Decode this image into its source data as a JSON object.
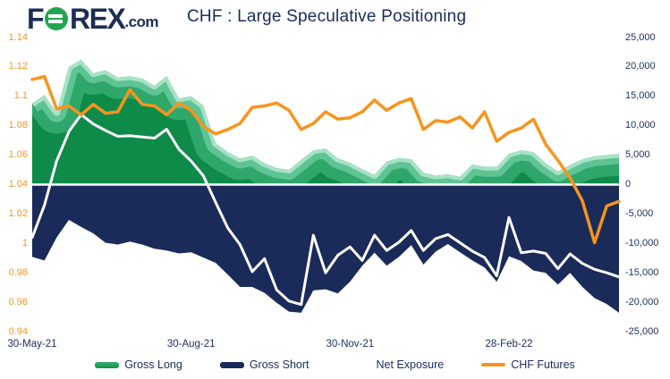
{
  "header": {
    "logo": {
      "prefix": "F",
      "suffix": "REX",
      "tld": ".com",
      "o_icon": "green-globe-circle"
    },
    "title": "CHF : Large Speculative Positioning"
  },
  "chart_data": {
    "type": "combo-area-line",
    "title": "CHF : Large Speculative Positioning",
    "grid": false,
    "legend_position": "bottom",
    "x_count": 49,
    "x_frequency": "weekly",
    "x_ticks": [
      {
        "index": 0,
        "label": "30-May-21"
      },
      {
        "index": 13,
        "label": "30-Aug-21"
      },
      {
        "index": 26,
        "label": "30-Nov-21"
      },
      {
        "index": 39,
        "label": "28-Feb-22"
      }
    ],
    "left_axis": {
      "min": 0.94,
      "max": 1.14,
      "color": "#f7941d",
      "tick_labels": [
        "1.14",
        "1.12",
        "1.1",
        "1.08",
        "1.06",
        "1.04",
        "1.02",
        "1",
        "0.98",
        "0.96",
        "0.94"
      ]
    },
    "right_axis": {
      "min": -25000,
      "max": 25000,
      "color": "#1a2c5e",
      "tick_labels": [
        "25,000",
        "20,000",
        "15,000",
        "10,000",
        "5,000",
        "0",
        "-5,000",
        "-10,000",
        "-15,000",
        "-20,000",
        "-25,000"
      ]
    },
    "series": [
      {
        "name": "Gross Long",
        "type": "area",
        "axis": "right",
        "color": "#0e8a49",
        "edge_shades": [
          "#2fa76b",
          "#5fc494",
          "#a8e2c6"
        ],
        "values": [
          13800,
          15200,
          12300,
          20000,
          21200,
          18900,
          19400,
          18200,
          18400,
          18000,
          16800,
          18400,
          14600,
          15000,
          13400,
          7000,
          5500,
          4400,
          4900,
          3600,
          2800,
          2500,
          4200,
          5800,
          6100,
          4400,
          3700,
          2600,
          1600,
          3900,
          4500,
          4300,
          2000,
          1500,
          1700,
          1300,
          3400,
          3000,
          3000,
          5200,
          5800,
          5500,
          3600,
          2200,
          3300,
          4300,
          4800,
          5000,
          5200
        ]
      },
      {
        "name": "Gross Short",
        "type": "area",
        "axis": "right",
        "color": "#1a2b5a",
        "values": [
          -12300,
          -12900,
          -9000,
          -6000,
          -7200,
          -8300,
          -9900,
          -10200,
          -9700,
          -10200,
          -10900,
          -11200,
          -11700,
          -11500,
          -12400,
          -13300,
          -15300,
          -17400,
          -17400,
          -18400,
          -20100,
          -21600,
          -21800,
          -18000,
          -17800,
          -18500,
          -16500,
          -13800,
          -11600,
          -13800,
          -12300,
          -10300,
          -13600,
          -11400,
          -10100,
          -11500,
          -12900,
          -14100,
          -16500,
          -12200,
          -13000,
          -14600,
          -15000,
          -17000,
          -15000,
          -17400,
          -19300,
          -20300,
          -21800
        ]
      },
      {
        "name": "Net Exposure",
        "type": "line",
        "axis": "right",
        "color": "#ffffff",
        "values": [
          -9000,
          -3500,
          4000,
          9000,
          11900,
          10300,
          9200,
          8200,
          8300,
          8100,
          7900,
          9400,
          6000,
          4000,
          1500,
          -3000,
          -7400,
          -10200,
          -14800,
          -12600,
          -17900,
          -19800,
          -20400,
          -8600,
          -15000,
          -12000,
          -10600,
          -12900,
          -8600,
          -11200,
          -9800,
          -7800,
          -11200,
          -9200,
          -8500,
          -9900,
          -11300,
          -12400,
          -15500,
          -5600,
          -11600,
          -11300,
          -11700,
          -14300,
          -11800,
          -13400,
          -14400,
          -15000,
          -15700
        ]
      },
      {
        "name": "CHF Futures",
        "type": "line",
        "axis": "left",
        "color": "#f7941d",
        "values": [
          1.1115,
          1.1135,
          1.0915,
          1.0935,
          1.0875,
          1.0945,
          1.0885,
          1.0895,
          1.1045,
          1.0945,
          1.0935,
          1.0875,
          1.0955,
          1.0905,
          1.0795,
          1.0745,
          1.0775,
          1.0815,
          1.0925,
          1.0935,
          1.0955,
          1.0905,
          1.0775,
          1.0815,
          1.0895,
          1.0845,
          1.0855,
          1.0895,
          1.0975,
          1.0905,
          1.0955,
          1.0985,
          1.0775,
          1.0835,
          1.0825,
          1.086,
          1.0785,
          1.0895,
          1.0695,
          1.0755,
          1.0785,
          1.0845,
          1.0675,
          1.0565,
          1.0445,
          1.029,
          1.0005,
          1.0255,
          1.0285
        ]
      }
    ]
  },
  "colors": {
    "background": "#ffffff",
    "navy": "#1a2c5e",
    "orange": "#f7941d",
    "logo_green": "#23a455",
    "zero_line": "#ffffff"
  }
}
